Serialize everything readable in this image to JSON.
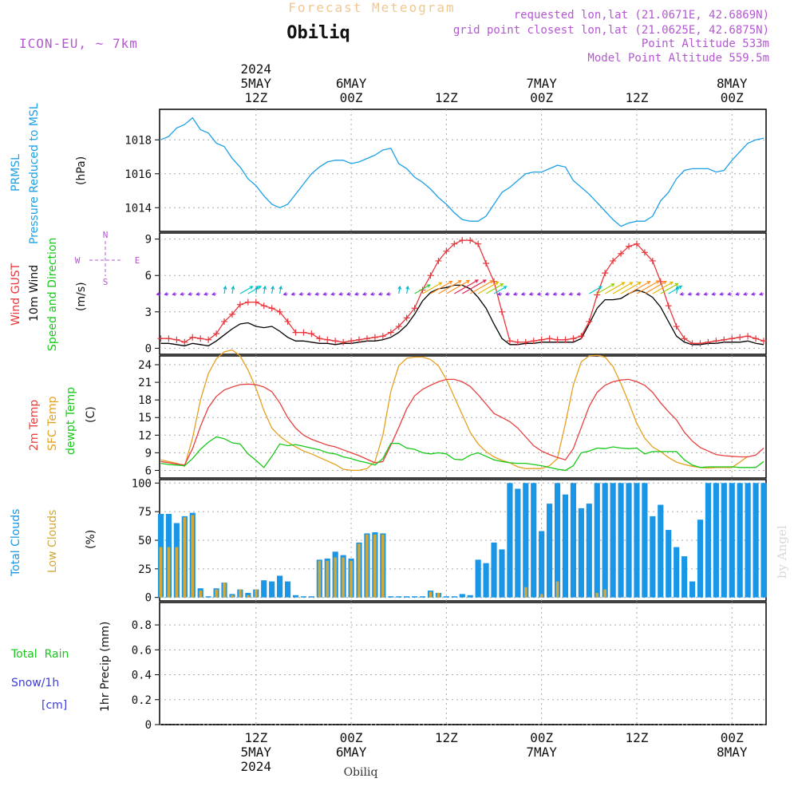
{
  "header": {
    "title": "Forecast Meteogram",
    "station": "Obiliq",
    "model": "ICON-EU, ~ 7km",
    "requested": "requested lon,lat (21.0671E, 42.6869N)",
    "gridpoint": "grid point closest lon,lat (21.0625E, 42.6875N)",
    "point_alt": "Point Altitude 533m",
    "model_alt": "Model Point Altitude 559.5m",
    "credit": "by Angel",
    "footer": "Obiliq"
  },
  "colors": {
    "pressure": "#1ea0e6",
    "gust": "#e8363c",
    "wind": "#000000",
    "arrow_calm": "#8a2be2",
    "t2m": "#e84040",
    "sfc": "#e6a020",
    "dewpt": "#18c818",
    "total_clouds": "#1a96e6",
    "low_clouds": "#d4a838",
    "rain": "#18c818",
    "snow": "#3c3cdc"
  },
  "time_axis": {
    "top_labels": [
      {
        "h": 12,
        "lines": [
          "2024",
          "5MAY",
          "12Z"
        ]
      },
      {
        "h": 24,
        "lines": [
          "6MAY",
          "00Z"
        ]
      },
      {
        "h": 36,
        "lines": [
          "12Z"
        ]
      },
      {
        "h": 48,
        "lines": [
          "7MAY",
          "00Z"
        ]
      },
      {
        "h": 60,
        "lines": [
          "12Z"
        ]
      },
      {
        "h": 72,
        "lines": [
          "8MAY",
          "00Z"
        ]
      }
    ],
    "bottom_labels": [
      {
        "h": 12,
        "lines": [
          "12Z",
          "5MAY",
          "2024"
        ]
      },
      {
        "h": 24,
        "lines": [
          "00Z",
          "6MAY"
        ]
      },
      {
        "h": 36,
        "lines": [
          "12Z"
        ]
      },
      {
        "h": 48,
        "lines": [
          "00Z",
          "7MAY"
        ]
      },
      {
        "h": 60,
        "lines": [
          "12Z"
        ]
      },
      {
        "h": 72,
        "lines": [
          "00Z",
          "8MAY"
        ]
      }
    ]
  },
  "panels": {
    "pressure": {
      "labels": [
        "PRMSL",
        "Pressure Reduced to MSL"
      ],
      "unit": "(hPa)",
      "ticks": [
        "1014",
        "1016",
        "1018"
      ]
    },
    "wind": {
      "labels": [
        "Wind GUST",
        "10m Wind",
        "Speed and Direction"
      ],
      "unit": "(m/s)",
      "ticks": [
        "0",
        "3",
        "6",
        "9"
      ],
      "compass": {
        "n": "N",
        "s": "S",
        "w": "W",
        "e": "E"
      }
    },
    "temp": {
      "labels": [
        "2m Temp",
        "SFC Temp",
        "dewpt Temp"
      ],
      "unit": "(C)",
      "ticks": [
        "6",
        "9",
        "12",
        "15",
        "18",
        "21",
        "24"
      ]
    },
    "clouds": {
      "labels": [
        "Total Clouds",
        "Low Clouds"
      ],
      "unit": "(%)",
      "ticks": [
        "0",
        "25",
        "50",
        "75",
        "100"
      ]
    },
    "precip": {
      "labels": [
        "Total  Rain",
        "Snow/1h",
        "[cm]"
      ],
      "unit": "1hr Precip (mm)",
      "ticks": [
        "0",
        "0.2",
        "0.4",
        "0.6",
        "0.8"
      ]
    }
  },
  "chart_data": [
    {
      "type": "line",
      "name": "PRMSL",
      "x_hours": [
        0,
        1,
        2,
        3,
        4,
        5,
        6,
        7,
        8,
        9,
        10,
        11,
        12,
        13,
        14,
        15,
        16,
        17,
        18,
        19,
        20,
        21,
        22,
        23,
        24,
        25,
        26,
        27,
        28,
        29,
        30,
        31,
        32,
        33,
        34,
        35,
        36,
        37,
        38,
        39,
        40,
        41,
        42,
        43,
        44,
        45,
        46,
        47,
        48,
        49,
        50,
        51,
        52,
        53,
        54,
        55,
        56,
        57,
        58,
        59,
        60,
        61,
        62,
        63,
        64,
        65,
        66,
        67,
        68,
        69,
        70,
        71,
        72,
        73,
        74,
        75,
        76
      ],
      "y": [
        1018.0,
        1018.2,
        1018.7,
        1018.9,
        1019.3,
        1018.6,
        1018.4,
        1017.8,
        1017.6,
        1016.9,
        1016.4,
        1015.7,
        1015.3,
        1014.7,
        1014.2,
        1014.0,
        1014.2,
        1014.8,
        1015.4,
        1016.0,
        1016.4,
        1016.7,
        1016.8,
        1016.8,
        1016.6,
        1016.7,
        1016.9,
        1017.1,
        1017.4,
        1017.5,
        1016.6,
        1016.3,
        1015.8,
        1015.5,
        1015.1,
        1014.6,
        1014.2,
        1013.7,
        1013.3,
        1013.2,
        1013.2,
        1013.5,
        1014.2,
        1014.9,
        1015.2,
        1015.6,
        1016.0,
        1016.1,
        1016.1,
        1016.3,
        1016.5,
        1016.4,
        1015.6,
        1015.2,
        1014.8,
        1014.3,
        1013.8,
        1013.3,
        1012.9,
        1013.1,
        1013.2,
        1013.2,
        1013.5,
        1014.4,
        1014.9,
        1015.7,
        1016.2,
        1016.3,
        1016.3,
        1016.3,
        1016.1,
        1016.2,
        1016.8,
        1017.3,
        1017.8,
        1018.0,
        1018.1
      ],
      "ylim": [
        1012.6,
        1019.8
      ]
    },
    {
      "type": "line",
      "name": "Wind GUST / 10m Wind",
      "x_hours": [
        0,
        1,
        2,
        3,
        4,
        5,
        6,
        7,
        8,
        9,
        10,
        11,
        12,
        13,
        14,
        15,
        16,
        17,
        18,
        19,
        20,
        21,
        22,
        23,
        24,
        25,
        26,
        27,
        28,
        29,
        30,
        31,
        32,
        33,
        34,
        35,
        36,
        37,
        38,
        39,
        40,
        41,
        42,
        43,
        44,
        45,
        46,
        47,
        48,
        49,
        50,
        51,
        52,
        53,
        54,
        55,
        56,
        57,
        58,
        59,
        60,
        61,
        62,
        63,
        64,
        65,
        66,
        67,
        68,
        69,
        70,
        71,
        72,
        73,
        74,
        75,
        76
      ],
      "gust": [
        0.8,
        0.8,
        0.7,
        0.5,
        0.9,
        0.8,
        0.7,
        1.2,
        2.2,
        2.8,
        3.6,
        3.8,
        3.8,
        3.5,
        3.3,
        3.0,
        2.2,
        1.3,
        1.3,
        1.2,
        0.8,
        0.7,
        0.6,
        0.5,
        0.6,
        0.7,
        0.8,
        0.9,
        1.0,
        1.3,
        1.8,
        2.5,
        3.3,
        4.8,
        6.0,
        7.2,
        8.0,
        8.6,
        8.9,
        8.9,
        8.6,
        7.0,
        5.5,
        3.0,
        0.6,
        0.5,
        0.5,
        0.6,
        0.7,
        0.8,
        0.7,
        0.7,
        0.8,
        1.0,
        2.2,
        4.4,
        6.2,
        7.2,
        7.8,
        8.4,
        8.6,
        7.9,
        7.2,
        5.5,
        3.5,
        1.8,
        0.8,
        0.4,
        0.4,
        0.5,
        0.6,
        0.7,
        0.8,
        0.9,
        1.0,
        0.8,
        0.6
      ],
      "wind": [
        0.4,
        0.4,
        0.3,
        0.2,
        0.4,
        0.3,
        0.2,
        0.6,
        1.1,
        1.6,
        2.0,
        2.1,
        1.8,
        1.7,
        1.8,
        1.4,
        0.9,
        0.6,
        0.6,
        0.5,
        0.4,
        0.4,
        0.3,
        0.4,
        0.4,
        0.5,
        0.6,
        0.6,
        0.7,
        0.9,
        1.3,
        1.9,
        2.8,
        3.9,
        4.6,
        4.9,
        5.0,
        5.2,
        5.2,
        4.9,
        4.2,
        3.3,
        2.0,
        0.8,
        0.3,
        0.3,
        0.4,
        0.4,
        0.5,
        0.5,
        0.5,
        0.5,
        0.5,
        0.8,
        2.0,
        3.3,
        4.0,
        4.0,
        4.1,
        4.5,
        4.8,
        4.6,
        4.2,
        3.4,
        2.2,
        1.0,
        0.5,
        0.3,
        0.3,
        0.4,
        0.4,
        0.5,
        0.5,
        0.5,
        0.6,
        0.4,
        0.3
      ],
      "arrow_level": 4.5,
      "ylim": [
        -0.5,
        9.5
      ]
    },
    {
      "type": "line",
      "name": "Temperatures",
      "x_hours": [
        0,
        1,
        2,
        3,
        4,
        5,
        6,
        7,
        8,
        9,
        10,
        11,
        12,
        13,
        14,
        15,
        16,
        17,
        18,
        19,
        20,
        21,
        22,
        23,
        24,
        25,
        26,
        27,
        28,
        29,
        30,
        31,
        32,
        33,
        34,
        35,
        36,
        37,
        38,
        39,
        40,
        41,
        42,
        43,
        44,
        45,
        46,
        47,
        48,
        49,
        50,
        51,
        52,
        53,
        54,
        55,
        56,
        57,
        58,
        59,
        60,
        61,
        62,
        63,
        64,
        65,
        66,
        67,
        68,
        69,
        70,
        71,
        72,
        73,
        74,
        75,
        76
      ],
      "t2m": [
        7.5,
        7.3,
        7.1,
        6.9,
        9.7,
        13.5,
        16.7,
        18.6,
        19.7,
        20.2,
        20.6,
        20.7,
        20.6,
        20.2,
        19.4,
        17.5,
        15.0,
        13.2,
        12.0,
        11.3,
        10.8,
        10.3,
        10.0,
        9.5,
        9.0,
        8.5,
        7.9,
        7.3,
        7.5,
        10.3,
        13.3,
        16.5,
        18.7,
        19.8,
        20.5,
        21.1,
        21.5,
        21.5,
        21.1,
        20.3,
        18.9,
        17.3,
        15.7,
        15.0,
        14.3,
        13.2,
        11.7,
        10.2,
        9.3,
        8.7,
        8.2,
        7.8,
        9.7,
        13.3,
        16.9,
        19.3,
        20.5,
        21.1,
        21.4,
        21.5,
        21.1,
        20.5,
        19.3,
        17.5,
        16.0,
        14.6,
        12.5,
        11.0,
        9.9,
        9.3,
        8.7,
        8.5,
        8.4,
        8.3,
        8.3,
        8.6,
        9.8
      ],
      "sfc": [
        7.8,
        7.5,
        7.2,
        6.7,
        11.5,
        18.0,
        22.5,
        25.0,
        26.2,
        26.5,
        25.5,
        23.1,
        20.0,
        16.2,
        13.2,
        11.8,
        10.8,
        10.0,
        9.3,
        8.8,
        8.2,
        7.6,
        7.0,
        6.2,
        6.0,
        6.0,
        6.3,
        7.5,
        12.0,
        19.5,
        23.8,
        25.1,
        25.3,
        25.3,
        24.9,
        23.8,
        21.5,
        18.5,
        15.5,
        12.5,
        10.5,
        9.2,
        8.3,
        7.7,
        7.3,
        6.6,
        6.3,
        6.3,
        6.3,
        6.8,
        8.0,
        14.0,
        20.5,
        24.5,
        25.5,
        25.6,
        25.3,
        23.7,
        20.8,
        17.5,
        14.0,
        11.5,
        10.0,
        9.2,
        8.2,
        7.4,
        7.0,
        6.7,
        6.5,
        6.4,
        6.5,
        6.5,
        6.5,
        7.4,
        8.4
      ],
      "dewpt": [
        7.2,
        7.0,
        6.9,
        6.8,
        8.0,
        9.6,
        10.8,
        11.7,
        11.4,
        10.7,
        10.5,
        8.8,
        7.7,
        6.5,
        8.4,
        10.5,
        10.2,
        10.4,
        10.1,
        9.8,
        9.5,
        9.0,
        8.8,
        8.3,
        8.0,
        7.6,
        7.3,
        6.9,
        8.0,
        10.6,
        10.6,
        9.8,
        9.6,
        9.0,
        8.8,
        9.0,
        8.8,
        7.9,
        7.8,
        8.6,
        9.0,
        8.4,
        7.8,
        7.5,
        7.3,
        7.2,
        7.2,
        7.0,
        6.8,
        6.5,
        6.2,
        6.0,
        6.8,
        9.0,
        9.3,
        9.8,
        9.7,
        10.0,
        9.8,
        9.7,
        9.8,
        8.8,
        9.2,
        9.2,
        9.2,
        9.2,
        7.8,
        6.9,
        6.5,
        6.6,
        6.6,
        6.6,
        6.6,
        6.5,
        6.5,
        6.5,
        7.5
      ],
      "ylim": [
        4.7,
        25.5
      ]
    },
    {
      "type": "bar",
      "name": "Clouds",
      "x_hours": [
        0,
        1,
        2,
        3,
        4,
        5,
        6,
        7,
        8,
        9,
        10,
        11,
        12,
        13,
        14,
        15,
        16,
        17,
        18,
        19,
        20,
        21,
        22,
        23,
        24,
        25,
        26,
        27,
        28,
        29,
        30,
        31,
        32,
        33,
        34,
        35,
        36,
        37,
        38,
        39,
        40,
        41,
        42,
        43,
        44,
        45,
        46,
        47,
        48,
        49,
        50,
        51,
        52,
        53,
        54,
        55,
        56,
        57,
        58,
        59,
        60,
        61,
        62,
        63,
        64,
        65,
        66,
        67,
        68,
        69,
        70,
        71,
        72,
        73,
        74,
        75,
        76
      ],
      "total": [
        73,
        73,
        65,
        71,
        74,
        8,
        0,
        8,
        13,
        3,
        7,
        4,
        7,
        15,
        14,
        19,
        14,
        2,
        1,
        1,
        33,
        34,
        40,
        37,
        34,
        48,
        56,
        57,
        56,
        1,
        1,
        1,
        1,
        0,
        6,
        4,
        1,
        1,
        3,
        2,
        33,
        30,
        48,
        42,
        100,
        95,
        100,
        100,
        58,
        82,
        100,
        90,
        100,
        78,
        82,
        100,
        100,
        100,
        100,
        100,
        100,
        100,
        71,
        81,
        59,
        44,
        36,
        14,
        68,
        100,
        100,
        100,
        100,
        100,
        100,
        100,
        100
      ],
      "low": [
        44,
        44,
        44,
        70,
        72,
        6,
        0,
        7,
        13,
        2,
        7,
        2,
        7,
        0,
        0,
        0,
        0,
        0,
        0,
        0,
        32,
        32,
        35,
        35,
        32,
        47,
        55,
        55,
        55,
        0,
        0,
        0,
        0,
        0,
        5,
        4,
        0,
        0,
        0,
        0,
        0,
        0,
        0,
        0,
        0,
        0,
        9,
        0,
        3,
        0,
        14,
        0,
        0,
        0,
        0,
        4,
        7,
        0,
        0,
        0,
        0,
        0,
        0,
        0,
        0,
        0,
        0,
        0,
        0,
        0,
        0,
        0,
        0,
        0,
        0,
        0,
        0
      ],
      "ylim": [
        -3,
        103
      ]
    },
    {
      "type": "bar",
      "name": "1hr Precip",
      "x_hours": [
        0,
        1,
        2,
        3,
        4,
        5,
        6,
        7,
        8,
        9,
        10,
        11,
        12,
        13,
        14,
        15,
        16,
        17,
        18,
        19,
        20,
        21,
        22,
        23,
        24,
        25,
        26,
        27,
        28,
        29,
        30,
        31,
        32,
        33,
        34,
        35,
        36,
        37,
        38,
        39,
        40,
        41,
        42,
        43,
        44,
        45,
        46,
        47,
        48,
        49,
        50,
        51,
        52,
        53,
        54,
        55,
        56,
        57,
        58,
        59,
        60,
        61,
        62,
        63,
        64,
        65,
        66,
        67,
        68,
        69,
        70,
        71,
        72,
        73,
        74,
        75,
        76
      ],
      "rain": [
        0,
        0,
        0,
        0,
        0,
        0,
        0,
        0,
        0,
        0,
        0,
        0,
        0,
        0,
        0,
        0,
        0,
        0,
        0,
        0,
        0,
        0,
        0,
        0,
        0,
        0,
        0,
        0,
        0,
        0,
        0,
        0,
        0,
        0,
        0,
        0,
        0,
        0,
        0,
        0,
        0,
        0,
        0,
        0,
        0,
        0,
        0,
        0,
        0,
        0,
        0,
        0,
        0,
        0,
        0,
        0,
        0,
        0,
        0,
        0,
        0,
        0,
        0,
        0,
        0,
        0,
        0,
        0,
        0,
        0,
        0,
        0,
        0,
        0,
        0,
        0,
        0
      ],
      "ylim": [
        0,
        0.98
      ]
    }
  ]
}
